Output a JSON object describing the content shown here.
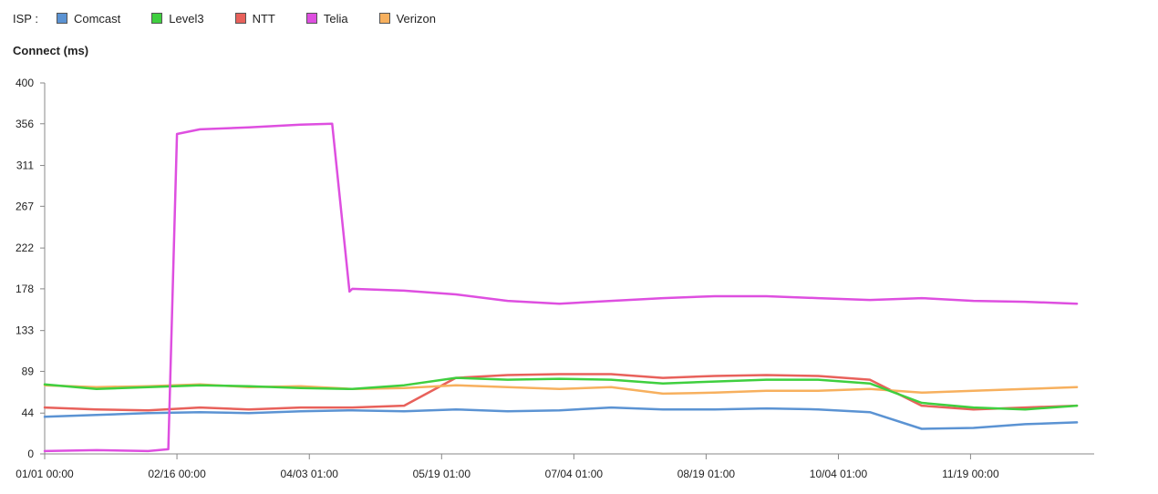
{
  "legend": {
    "title": "ISP :",
    "items": [
      {
        "name": "Comcast",
        "color": "#5b93d3"
      },
      {
        "name": "Level3",
        "color": "#3fcf3f"
      },
      {
        "name": "NTT",
        "color": "#e8615b"
      },
      {
        "name": "Telia",
        "color": "#de4fe0"
      },
      {
        "name": "Verizon",
        "color": "#f7b05e"
      }
    ]
  },
  "chart_data": {
    "type": "line",
    "ylabel": "Connect (ms)",
    "xlabel": "",
    "ylim": [
      0,
      400
    ],
    "yticks": [
      0,
      44,
      89,
      133,
      178,
      222,
      267,
      311,
      356,
      400
    ],
    "x_range": [
      "01/01 00:00",
      "12/31 23:59"
    ],
    "xticks": [
      "01/01 00:00",
      "02/16 00:00",
      "04/03 01:00",
      "05/19 01:00",
      "07/04 01:00",
      "08/19 01:00",
      "10/04 01:00",
      "11/19 00:00"
    ],
    "grid": false,
    "legend_position": "top",
    "series": [
      {
        "name": "Comcast",
        "color": "#5b93d3",
        "x": [
          "01/01",
          "01/19",
          "02/06",
          "02/24",
          "03/13",
          "03/31",
          "04/18",
          "05/06",
          "05/24",
          "06/11",
          "06/29",
          "07/17",
          "08/04",
          "08/22",
          "09/09",
          "09/27",
          "10/15",
          "11/02",
          "11/20",
          "12/08",
          "12/26"
        ],
        "values": [
          40,
          42,
          44,
          45,
          44,
          46,
          47,
          46,
          48,
          46,
          47,
          50,
          48,
          48,
          49,
          48,
          45,
          27,
          28,
          32,
          34
        ]
      },
      {
        "name": "Level3",
        "color": "#3fcf3f",
        "x": [
          "01/01",
          "01/19",
          "02/06",
          "02/24",
          "03/13",
          "03/31",
          "04/18",
          "05/06",
          "05/24",
          "06/11",
          "06/29",
          "07/17",
          "08/04",
          "08/22",
          "09/09",
          "09/27",
          "10/15",
          "11/02",
          "11/20",
          "12/08",
          "12/26"
        ],
        "values": [
          75,
          70,
          72,
          74,
          73,
          71,
          70,
          74,
          82,
          80,
          81,
          80,
          76,
          78,
          80,
          80,
          76,
          55,
          50,
          48,
          52
        ]
      },
      {
        "name": "NTT",
        "color": "#e8615b",
        "x": [
          "01/01",
          "01/19",
          "02/06",
          "02/24",
          "03/13",
          "03/31",
          "04/18",
          "05/06",
          "05/24",
          "06/11",
          "06/29",
          "07/17",
          "08/04",
          "08/22",
          "09/09",
          "09/27",
          "10/15",
          "11/02",
          "11/20",
          "12/08",
          "12/26"
        ],
        "values": [
          50,
          48,
          47,
          50,
          48,
          50,
          50,
          52,
          82,
          85,
          86,
          86,
          82,
          84,
          85,
          84,
          80,
          52,
          48,
          50,
          52
        ]
      },
      {
        "name": "Telia",
        "color": "#de4fe0",
        "x": [
          "01/01",
          "01/19",
          "02/06",
          "02/13",
          "02/16",
          "02/24",
          "03/13",
          "03/31",
          "04/11",
          "04/17",
          "04/18",
          "05/06",
          "05/24",
          "06/11",
          "06/29",
          "07/17",
          "08/04",
          "08/22",
          "09/09",
          "09/27",
          "10/15",
          "11/02",
          "11/20",
          "12/08",
          "12/26"
        ],
        "values": [
          3,
          4,
          3,
          5,
          345,
          350,
          352,
          355,
          356,
          175,
          178,
          176,
          172,
          165,
          162,
          165,
          168,
          170,
          170,
          168,
          166,
          168,
          165,
          164,
          162
        ]
      },
      {
        "name": "Verizon",
        "color": "#f7b05e",
        "x": [
          "01/01",
          "01/19",
          "02/06",
          "02/24",
          "03/13",
          "03/31",
          "04/18",
          "05/06",
          "05/24",
          "06/11",
          "06/29",
          "07/17",
          "08/04",
          "08/22",
          "09/09",
          "09/27",
          "10/15",
          "11/02",
          "11/20",
          "12/08",
          "12/26"
        ],
        "values": [
          74,
          72,
          73,
          75,
          72,
          73,
          70,
          71,
          74,
          72,
          70,
          72,
          65,
          66,
          68,
          68,
          70,
          66,
          68,
          70,
          72
        ]
      }
    ]
  }
}
